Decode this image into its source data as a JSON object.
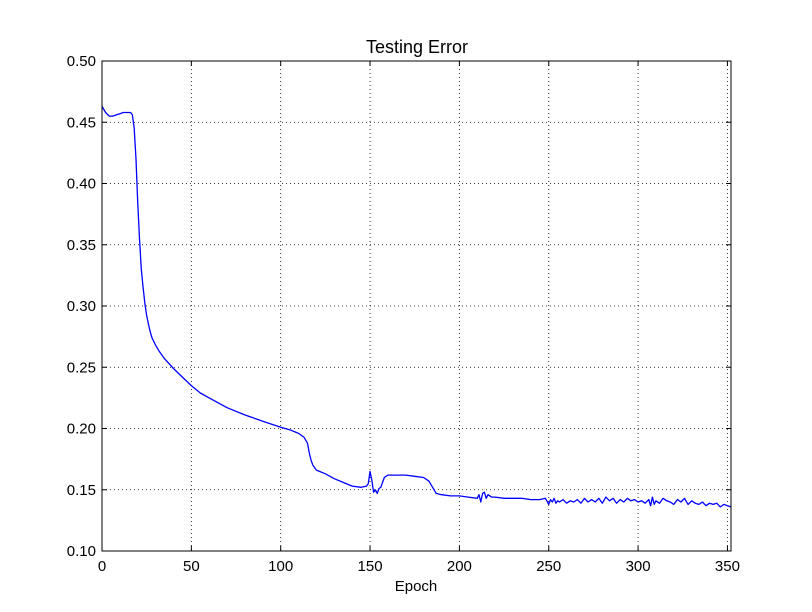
{
  "chart_data": {
    "type": "line",
    "title": "Testing Error",
    "xlabel": "Epoch",
    "ylabel": "",
    "xlim": [
      0,
      352
    ],
    "ylim": [
      0.1,
      0.5
    ],
    "grid": true,
    "xticks": [
      0,
      50,
      100,
      150,
      200,
      250,
      300,
      350
    ],
    "xtick_labels": [
      "0",
      "50",
      "100",
      "150",
      "200",
      "250",
      "300",
      "350"
    ],
    "yticks": [
      0.1,
      0.15,
      0.2,
      0.25,
      0.3,
      0.35,
      0.4,
      0.45,
      0.5
    ],
    "ytick_labels": [
      "0.10",
      "0.15",
      "0.20",
      "0.25",
      "0.30",
      "0.35",
      "0.40",
      "0.45",
      "0.50"
    ],
    "series": [
      {
        "color": "#0000ff",
        "x": [
          0,
          2,
          4,
          6,
          8,
          10,
          12,
          14,
          16,
          17,
          18,
          19,
          20,
          21,
          22,
          23,
          24,
          25,
          26,
          27,
          28,
          30,
          32,
          35,
          40,
          45,
          50,
          55,
          60,
          70,
          80,
          90,
          100,
          105,
          110,
          113,
          115,
          116,
          117,
          118,
          120,
          125,
          130,
          135,
          140,
          145,
          148,
          149,
          150,
          151,
          152,
          153,
          154,
          155,
          156,
          158,
          160,
          165,
          170,
          175,
          180,
          183,
          185,
          187,
          190,
          195,
          200,
          205,
          210,
          211,
          212,
          213,
          214,
          215,
          216,
          218,
          220,
          225,
          230,
          235,
          240,
          245,
          248,
          249,
          250,
          251,
          252,
          253,
          254,
          255,
          256,
          258,
          260,
          262,
          264,
          266,
          268,
          270,
          272,
          274,
          276,
          278,
          280,
          282,
          284,
          286,
          288,
          290,
          292,
          294,
          296,
          298,
          300,
          302,
          304,
          306,
          307,
          308,
          309,
          310,
          312,
          314,
          316,
          318,
          320,
          322,
          324,
          326,
          328,
          330,
          332,
          334,
          336,
          338,
          340,
          342,
          344,
          346,
          348,
          350,
          352
        ],
        "y": [
          0.463,
          0.458,
          0.455,
          0.455,
          0.456,
          0.457,
          0.458,
          0.458,
          0.458,
          0.456,
          0.445,
          0.42,
          0.385,
          0.355,
          0.33,
          0.315,
          0.302,
          0.292,
          0.285,
          0.279,
          0.274,
          0.268,
          0.263,
          0.257,
          0.249,
          0.242,
          0.235,
          0.229,
          0.225,
          0.217,
          0.211,
          0.206,
          0.201,
          0.199,
          0.196,
          0.193,
          0.188,
          0.18,
          0.174,
          0.17,
          0.166,
          0.163,
          0.159,
          0.156,
          0.153,
          0.152,
          0.153,
          0.155,
          0.165,
          0.158,
          0.148,
          0.15,
          0.147,
          0.151,
          0.152,
          0.16,
          0.162,
          0.162,
          0.162,
          0.161,
          0.16,
          0.157,
          0.152,
          0.147,
          0.146,
          0.145,
          0.145,
          0.144,
          0.143,
          0.146,
          0.14,
          0.147,
          0.148,
          0.143,
          0.146,
          0.144,
          0.144,
          0.143,
          0.143,
          0.143,
          0.142,
          0.142,
          0.143,
          0.141,
          0.138,
          0.142,
          0.14,
          0.143,
          0.139,
          0.141,
          0.14,
          0.142,
          0.139,
          0.141,
          0.14,
          0.142,
          0.139,
          0.143,
          0.14,
          0.142,
          0.14,
          0.143,
          0.139,
          0.144,
          0.141,
          0.143,
          0.139,
          0.142,
          0.14,
          0.143,
          0.141,
          0.142,
          0.14,
          0.141,
          0.139,
          0.142,
          0.137,
          0.144,
          0.138,
          0.141,
          0.139,
          0.143,
          0.141,
          0.14,
          0.138,
          0.142,
          0.14,
          0.143,
          0.138,
          0.141,
          0.139,
          0.138,
          0.14,
          0.137,
          0.139,
          0.138,
          0.139,
          0.136,
          0.138,
          0.137,
          0.136
        ]
      }
    ]
  }
}
